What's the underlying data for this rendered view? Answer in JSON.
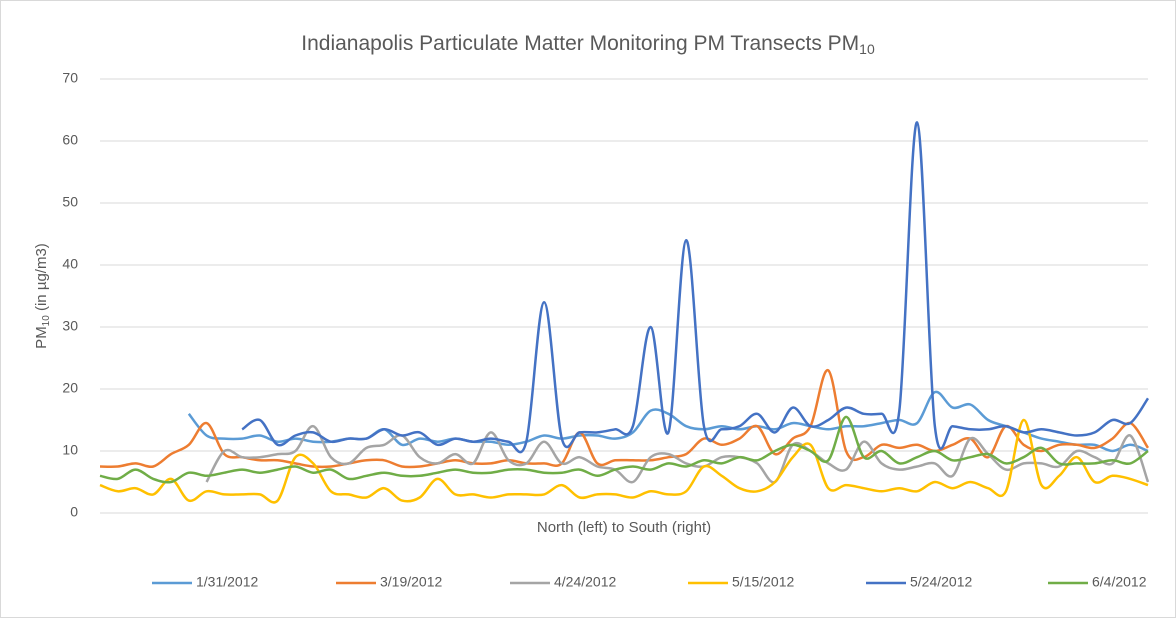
{
  "chart_data": {
    "type": "line",
    "title": "Indianapolis Particulate Matter Monitoring PM Transects PM",
    "title_subscript": "10",
    "y_label": "PM",
    "y_label_subscript": "10",
    "y_label_rest": " (in µg/m3)",
    "x_label": "North (left) to South (right)",
    "categories": [
      null,
      null,
      null,
      null,
      null,
      null,
      null,
      null,
      null,
      null,
      null,
      null,
      null,
      null,
      null,
      null,
      null,
      null,
      null,
      null,
      null,
      null,
      null,
      null,
      null,
      null,
      null,
      null,
      null,
      null,
      null,
      null,
      null,
      null,
      null,
      null,
      null,
      null,
      null,
      null,
      null,
      null,
      null,
      null,
      null,
      null,
      null,
      null,
      null,
      null,
      null,
      null,
      null,
      null,
      null,
      null,
      null,
      null,
      null,
      null
    ],
    "ylim": [
      0,
      70
    ],
    "yticks": [
      0,
      10,
      20,
      30,
      40,
      50,
      60,
      70
    ],
    "grid": true,
    "legend": "bottom",
    "series": [
      {
        "name": "1/31/2012",
        "color": "#5b9bd5",
        "values": [
          null,
          null,
          null,
          null,
          null,
          16,
          12.5,
          12,
          12,
          12.5,
          11.5,
          12,
          11.5,
          11.5,
          12,
          12,
          13.5,
          11,
          12,
          11.5,
          12,
          11.5,
          11.5,
          11,
          11.5,
          12.5,
          12,
          12.5,
          12.5,
          12,
          13,
          16.5,
          16,
          14,
          13.5,
          14,
          13.5,
          14,
          13.5,
          14.5,
          14,
          13.5,
          14,
          14,
          14.5,
          15,
          14.5,
          19.5,
          17,
          17.5,
          15,
          14,
          13,
          12,
          11.5,
          11,
          11,
          10,
          11,
          10
        ]
      },
      {
        "name": "3/19/2012",
        "color": "#ed7d31",
        "values": [
          7.5,
          7.5,
          8,
          7.5,
          9.5,
          11,
          14.5,
          9.5,
          9,
          8.5,
          8.5,
          8,
          7.5,
          7.5,
          8,
          8.5,
          8.5,
          7.5,
          7.5,
          8,
          8.5,
          8,
          8,
          8.5,
          8,
          8,
          8,
          13,
          8,
          8.5,
          8.5,
          8.5,
          9,
          9.5,
          12,
          11,
          12,
          14,
          9.5,
          12,
          14,
          23,
          10,
          9,
          11,
          10.5,
          11,
          10,
          11,
          12,
          9,
          14,
          11,
          10,
          11,
          11,
          10.5,
          12,
          14.5,
          10.5
        ]
      },
      {
        "name": "4/24/2012",
        "color": "#a5a5a5",
        "values": [
          null,
          null,
          null,
          null,
          null,
          null,
          5,
          10,
          9,
          9,
          9.5,
          10,
          14,
          9,
          8,
          10.5,
          11,
          12.5,
          9,
          8,
          9.5,
          8,
          13,
          8.5,
          8,
          11.5,
          8,
          9,
          7.5,
          7,
          5,
          9,
          9.5,
          8,
          7.5,
          9,
          9,
          8,
          5,
          11,
          10,
          8,
          7,
          11.5,
          8,
          7,
          7.5,
          8,
          6,
          12,
          9.5,
          7,
          8,
          8,
          7.5,
          10,
          9,
          8,
          12.5,
          5
        ]
      },
      {
        "name": "5/15/2012",
        "color": "#ffc000",
        "values": [
          4.5,
          3.5,
          4,
          3,
          5.5,
          2,
          3.5,
          3,
          3,
          3,
          2,
          9,
          8,
          3.5,
          3,
          2.5,
          4,
          2,
          2.5,
          5.5,
          3,
          3,
          2.5,
          3,
          3,
          3,
          4.5,
          2.5,
          3,
          3,
          2.5,
          3.5,
          3,
          3.5,
          7.5,
          6,
          4,
          3.5,
          5,
          9,
          11,
          4,
          4.5,
          4,
          3.5,
          4,
          3.5,
          5,
          4,
          5,
          4,
          3.5,
          15,
          4.5,
          6,
          9,
          5,
          6,
          5.5,
          4.5
        ]
      },
      {
        "name": "5/24/2012",
        "color": "#4472c4",
        "values": [
          null,
          null,
          null,
          null,
          null,
          null,
          null,
          null,
          13.5,
          15,
          11,
          12.5,
          13,
          11.5,
          12,
          12,
          13.5,
          12.5,
          13,
          11,
          12,
          11.5,
          12,
          11.5,
          11.5,
          34,
          12,
          13,
          13,
          13.5,
          14,
          30,
          13,
          44,
          14,
          13.5,
          14,
          16,
          13,
          17,
          14,
          15,
          17,
          16,
          16,
          16.5,
          63,
          14,
          14,
          13.5,
          13.5,
          14,
          13,
          13.5,
          13,
          12.5,
          13,
          15,
          14.5,
          18.5
        ]
      },
      {
        "name": "6/4/2012",
        "color": "#70ad47",
        "values": [
          6,
          5.5,
          7,
          5.5,
          5,
          6.5,
          6,
          6.5,
          7,
          6.5,
          7,
          7.5,
          6.5,
          7,
          5.5,
          6,
          6.5,
          6,
          6,
          6.5,
          7,
          6.5,
          6.5,
          7,
          7,
          6.5,
          6.5,
          7,
          6,
          7,
          7.5,
          7,
          8,
          7.5,
          8.5,
          8,
          9,
          8.5,
          10,
          11,
          10,
          8.5,
          15.5,
          9,
          10,
          8,
          9,
          10,
          8.5,
          9,
          9.5,
          8,
          9,
          10.5,
          8,
          8,
          8,
          8.5,
          8,
          10
        ]
      }
    ]
  }
}
